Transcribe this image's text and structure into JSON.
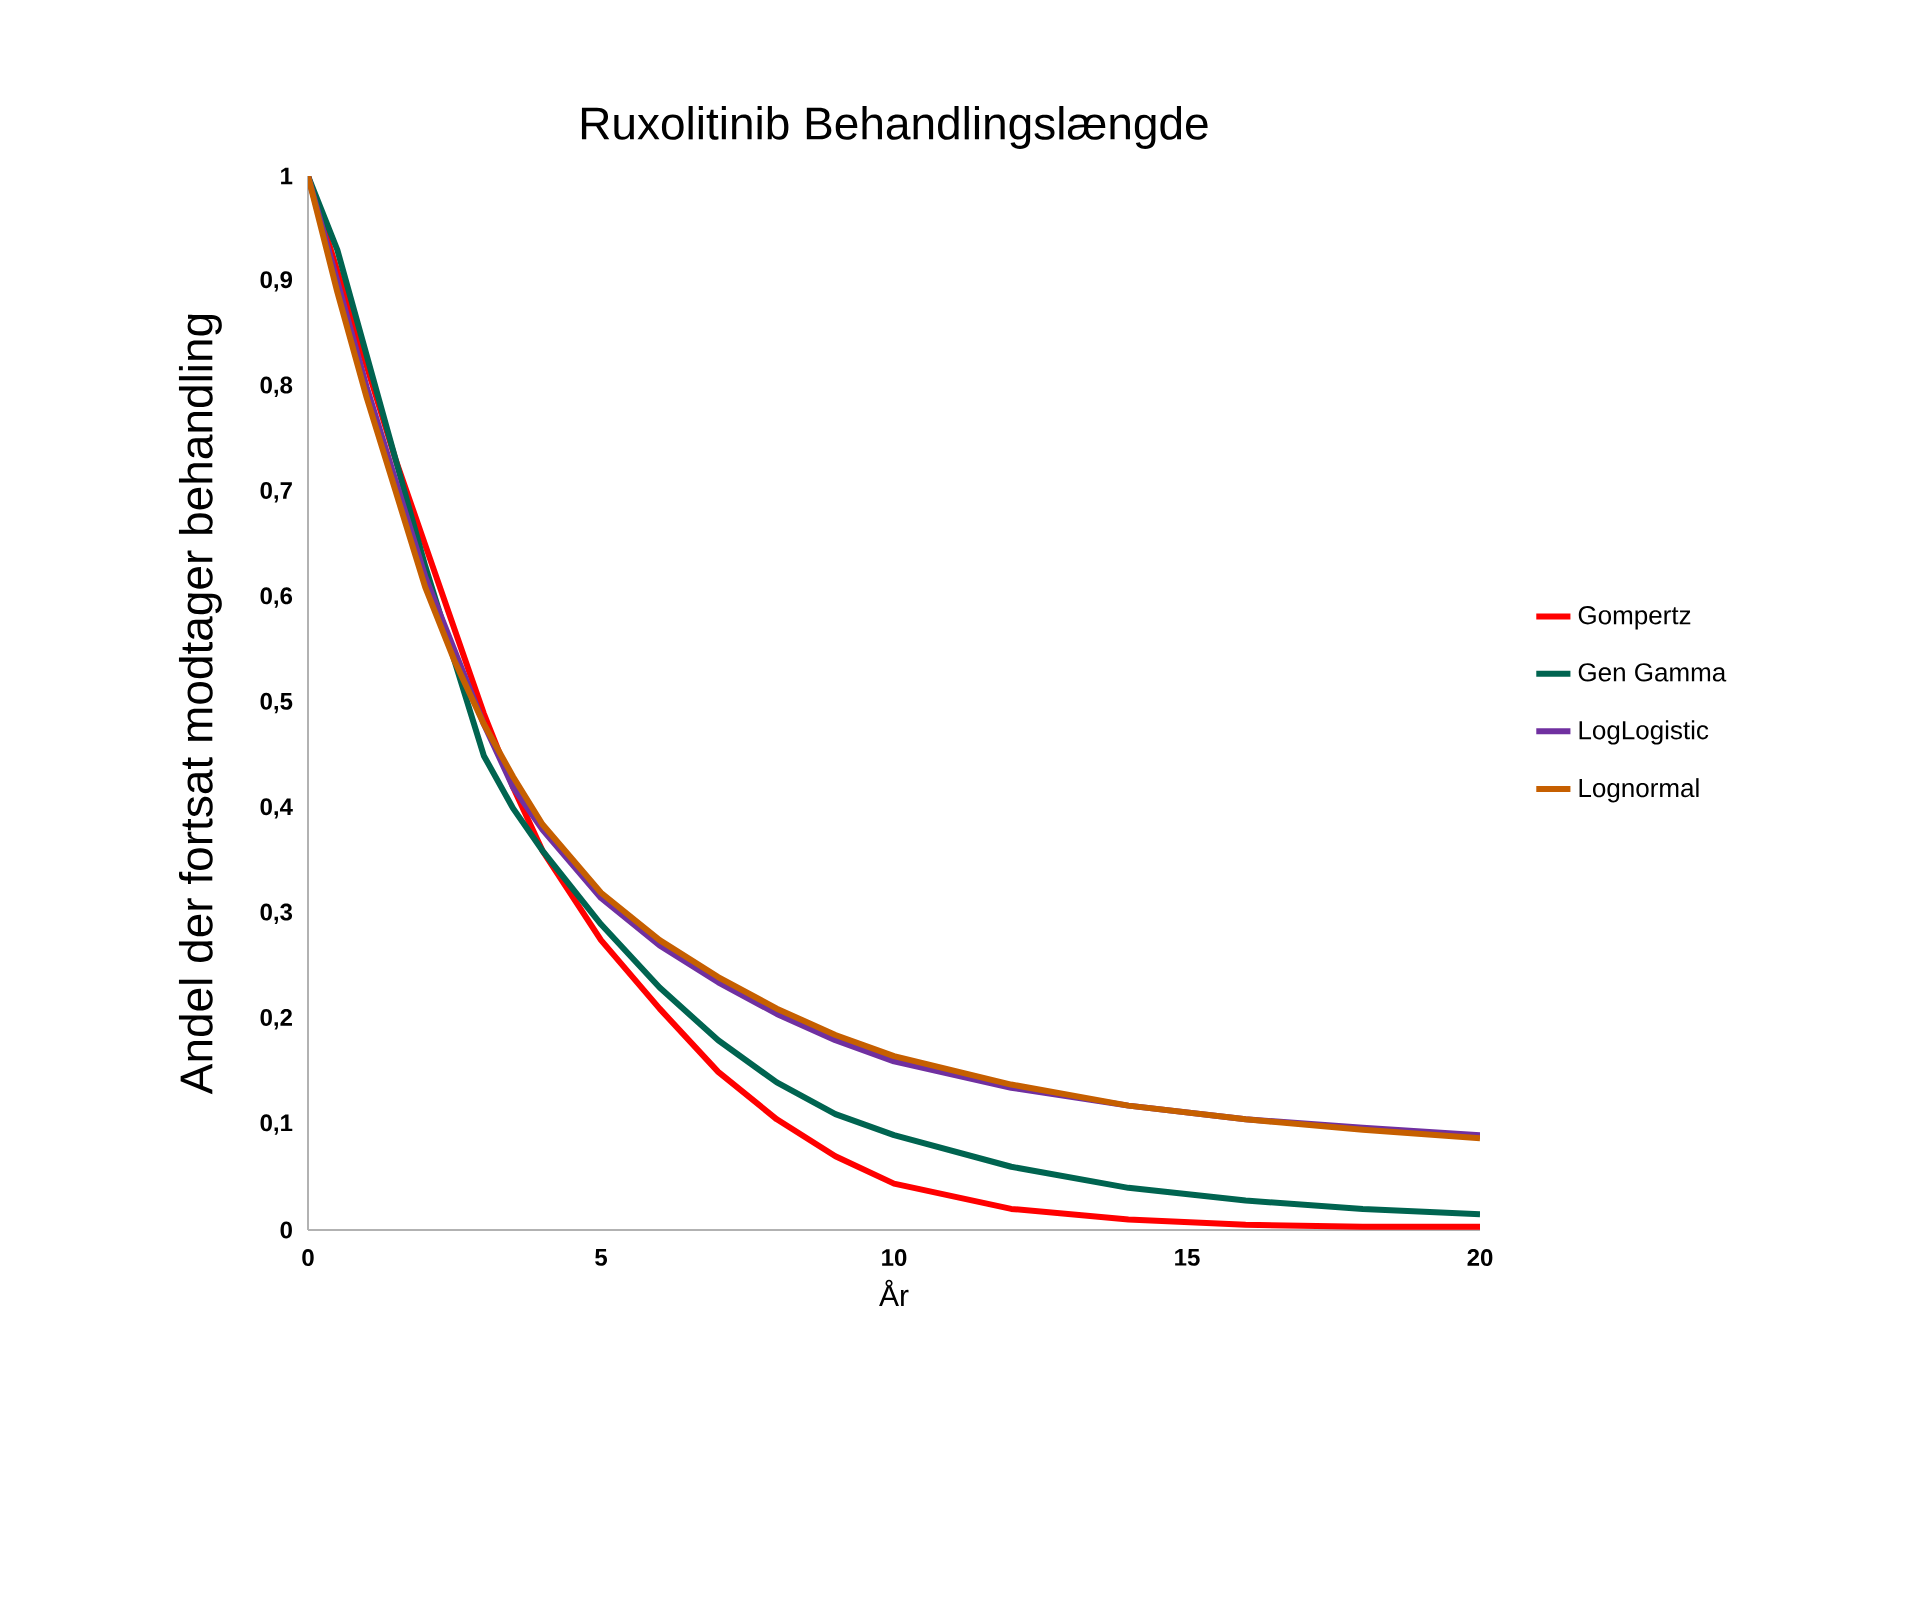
{
  "chart_data": {
    "type": "line",
    "title": "Ruxolitinib Behandlingslængde",
    "xlabel": "År",
    "ylabel": "Andel der fortsat modtager behandling",
    "x": [
      0,
      0.5,
      1,
      1.5,
      2,
      2.5,
      3,
      3.5,
      4,
      5,
      6,
      7,
      8,
      9,
      10,
      12,
      14,
      16,
      18,
      20
    ],
    "series": [
      {
        "name": "Gompertz",
        "color": "#ff0000",
        "values": [
          1,
          0.91,
          0.82,
          0.73,
          0.65,
          0.57,
          0.49,
          0.42,
          0.36,
          0.275,
          0.21,
          0.15,
          0.105,
          0.07,
          0.044,
          0.02,
          0.01,
          0.005,
          0.003,
          0.003
        ]
      },
      {
        "name": "Gen Gamma",
        "color": "#006450",
        "values": [
          1,
          0.93,
          0.83,
          0.73,
          0.63,
          0.54,
          0.45,
          0.4,
          0.36,
          0.29,
          0.23,
          0.18,
          0.14,
          0.11,
          0.09,
          0.06,
          0.04,
          0.028,
          0.02,
          0.015
        ]
      },
      {
        "name": "LogLogistic",
        "color": "#7030a0",
        "values": [
          1,
          0.9,
          0.8,
          0.71,
          0.62,
          0.55,
          0.48,
          0.42,
          0.38,
          0.315,
          0.27,
          0.235,
          0.205,
          0.18,
          0.16,
          0.135,
          0.118,
          0.105,
          0.097,
          0.09
        ]
      },
      {
        "name": "Lognormal",
        "color": "#c65f00",
        "values": [
          1,
          0.89,
          0.79,
          0.7,
          0.61,
          0.54,
          0.48,
          0.43,
          0.385,
          0.32,
          0.275,
          0.24,
          0.21,
          0.185,
          0.165,
          0.138,
          0.118,
          0.105,
          0.095,
          0.087
        ]
      }
    ],
    "xlim": [
      0,
      20
    ],
    "ylim": [
      0,
      1
    ],
    "xticks": [
      0,
      5,
      10,
      15,
      20
    ],
    "yticks": [
      0,
      {
        "value": 0.1,
        "label": "0,1"
      },
      {
        "value": 0.2,
        "label": "0,2"
      },
      {
        "value": 0.3,
        "label": "0,3"
      },
      {
        "value": 0.4,
        "label": "0,4"
      },
      {
        "value": 0.5,
        "label": "0,5"
      },
      {
        "value": 0.6,
        "label": "0,6"
      },
      {
        "value": 0.7,
        "label": "0,7"
      },
      {
        "value": 0.8,
        "label": "0,8"
      },
      {
        "value": 0.9,
        "label": "0,9"
      },
      1
    ],
    "grid": false,
    "legend": "right",
    "marker": "none",
    "line_style": "solid"
  }
}
